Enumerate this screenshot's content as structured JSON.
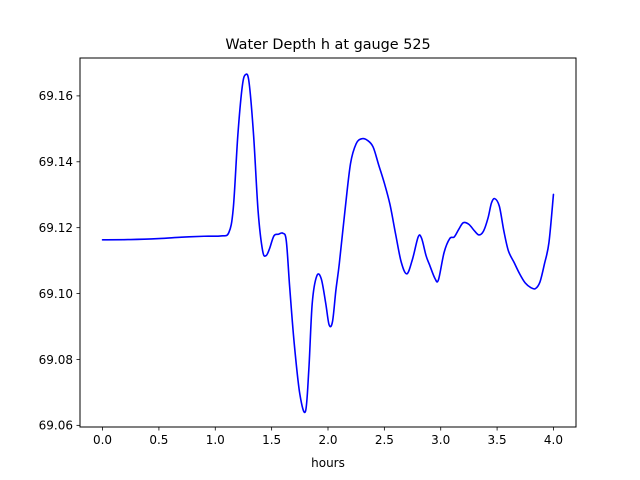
{
  "chart_data": {
    "type": "line",
    "title": "Water Depth h at gauge 525",
    "xlabel": "hours",
    "ylabel": "",
    "xlim": [
      -0.2,
      4.2
    ],
    "ylim": [
      69.0595,
      69.1715
    ],
    "xticks": [
      0.0,
      0.5,
      1.0,
      1.5,
      2.0,
      2.5,
      3.0,
      3.5,
      4.0
    ],
    "xtick_labels": [
      "0.0",
      "0.5",
      "1.0",
      "1.5",
      "2.0",
      "2.5",
      "3.0",
      "3.5",
      "4.0"
    ],
    "yticks": [
      69.06,
      69.08,
      69.1,
      69.12,
      69.14,
      69.16
    ],
    "ytick_labels": [
      "69.06",
      "69.08",
      "69.10",
      "69.12",
      "69.14",
      "69.16"
    ],
    "grid": false,
    "series": [
      {
        "color": "#0000ff",
        "x": [
          0.0,
          0.25,
          0.5,
          0.7,
          0.9,
          1.05,
          1.12,
          1.16,
          1.2,
          1.24,
          1.27,
          1.3,
          1.34,
          1.38,
          1.42,
          1.45,
          1.48,
          1.52,
          1.56,
          1.6,
          1.63,
          1.66,
          1.7,
          1.75,
          1.8,
          1.83,
          1.86,
          1.9,
          1.94,
          1.98,
          2.01,
          2.04,
          2.07,
          2.1,
          2.15,
          2.2,
          2.25,
          2.3,
          2.35,
          2.4,
          2.45,
          2.5,
          2.55,
          2.6,
          2.65,
          2.7,
          2.75,
          2.8,
          2.83,
          2.87,
          2.9,
          2.95,
          2.98,
          3.03,
          3.08,
          3.12,
          3.16,
          3.2,
          3.25,
          3.3,
          3.34,
          3.38,
          3.42,
          3.45,
          3.48,
          3.52,
          3.56,
          3.6,
          3.65,
          3.7,
          3.75,
          3.8,
          3.84,
          3.88,
          3.92,
          3.96,
          4.0
        ],
        "values": [
          69.1163,
          69.1164,
          69.1167,
          69.1171,
          69.1174,
          69.1175,
          69.1185,
          69.126,
          69.148,
          69.163,
          69.1665,
          69.164,
          69.148,
          69.125,
          69.113,
          69.1115,
          69.1135,
          69.1175,
          69.118,
          69.1183,
          69.116,
          69.102,
          69.085,
          69.0695,
          69.0642,
          69.077,
          69.097,
          69.1053,
          69.1045,
          69.097,
          69.0905,
          69.0915,
          69.101,
          69.109,
          69.125,
          69.1395,
          69.1455,
          69.147,
          69.1465,
          69.1445,
          69.139,
          69.1335,
          69.127,
          69.118,
          69.1095,
          69.106,
          69.1105,
          69.1172,
          69.1168,
          69.1115,
          69.1088,
          69.1045,
          69.1042,
          69.1125,
          69.1167,
          69.1172,
          69.1195,
          69.1215,
          69.121,
          69.119,
          69.1178,
          69.119,
          69.123,
          69.1275,
          69.1288,
          69.1265,
          69.119,
          69.113,
          69.1095,
          69.106,
          69.1032,
          69.1018,
          69.1015,
          69.1035,
          69.109,
          69.1155,
          69.1301
        ]
      }
    ]
  }
}
